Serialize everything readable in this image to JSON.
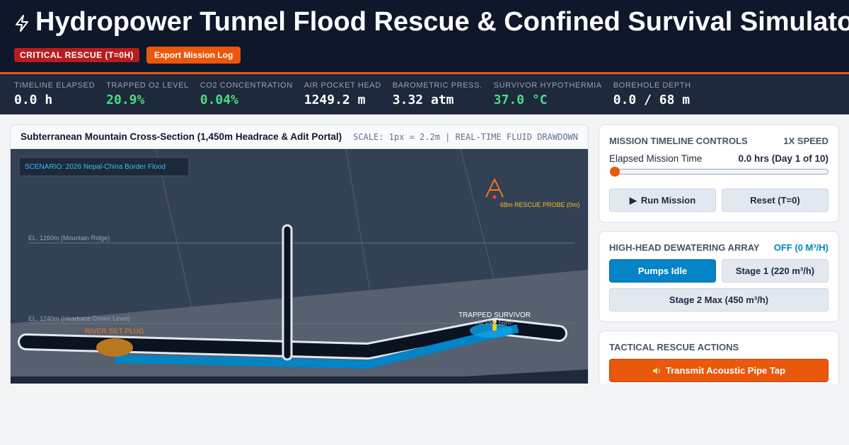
{
  "header": {
    "title": "Hydropower Tunnel Flood Rescue & Confined Survival Simulator",
    "badge": "CRITICAL RESCUE (T=0H)",
    "export_button": "Export Mission Log"
  },
  "stats": [
    {
      "label": "TIMELINE ELAPSED",
      "value": "0.0 h"
    },
    {
      "label": "TRAPPED O2 LEVEL",
      "value": "20.9%"
    },
    {
      "label": "CO2 CONCENTRATION",
      "value": "0.04%"
    },
    {
      "label": "AIR POCKET HEAD",
      "value": "1249.2 m"
    },
    {
      "label": "BAROMETRIC PRESS.",
      "value": "3.32 atm"
    },
    {
      "label": "SURVIVOR HYPOTHERMIA",
      "value": "37.0 °C"
    },
    {
      "label": "BOREHOLE DEPTH",
      "value": "0.0 / 68 m"
    }
  ],
  "cross_section": {
    "title": "Subterranean Mountain Cross-Section (1,450m Headrace & Adit Portal)",
    "scale": "SCALE: 1px = 2.2m | REAL-TIME FLUID DRAWDOWN",
    "scenario": "SCENARIO: 2026 Nepal-China Border Flood",
    "elevation_labels": [
      "EL. 1260m (Mountain Ridge)",
      "EL. 1240m (Headrace Crown Level)"
    ],
    "silt_label": "RIVER SILT PLUG",
    "survivor_label": "TRAPPED SURVIVOR",
    "air_pocket_label": "Air Pkt: 56m³",
    "probe_label": "68m RESCUE PROBE (0m)"
  },
  "timeline": {
    "title": "MISSION TIMELINE CONTROLS",
    "speed": "1X SPEED",
    "elapsed_label": "Elapsed Mission Time",
    "elapsed_value": "0.0 hrs (Day 1 of 10)",
    "run_button": "Run Mission",
    "reset_button": "Reset (T=0)"
  },
  "dewatering": {
    "title": "HIGH-HEAD DEWATERING ARRAY",
    "status": "OFF (0 M³/H)",
    "buttons": [
      "Pumps Idle",
      "Stage 1 (220 m³/h)",
      "Stage 2 Max (450 m³/h)"
    ]
  },
  "tactical": {
    "title": "TACTICAL RESCUE ACTIONS",
    "buttons": [
      "Transmit Acoustic Pipe Tap"
    ]
  }
}
